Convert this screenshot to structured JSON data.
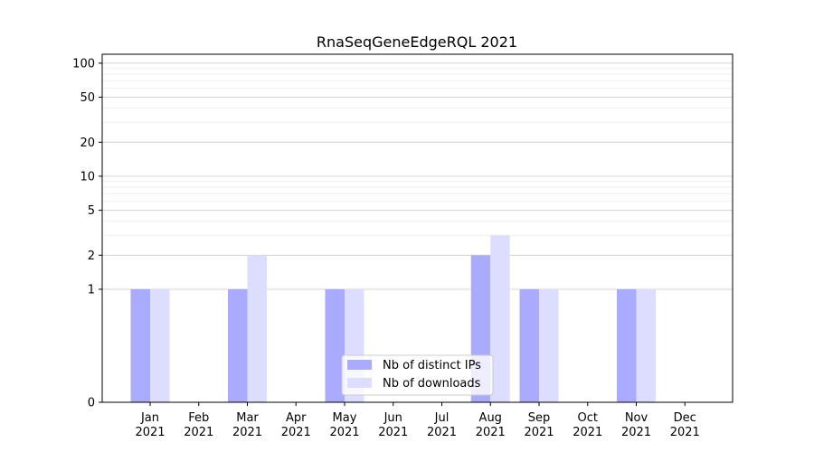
{
  "chart_data": {
    "type": "bar",
    "title": "RnaSeqGeneEdgeRQL 2021",
    "xlabel": "",
    "ylabel": "",
    "yscale": "symlog",
    "ylim": [
      0,
      120
    ],
    "y_ticks": [
      0,
      1,
      2,
      5,
      10,
      20,
      50,
      100
    ],
    "grid": true,
    "legend_position": "lower center",
    "categories": [
      [
        "Jan",
        "2021"
      ],
      [
        "Feb",
        "2021"
      ],
      [
        "Mar",
        "2021"
      ],
      [
        "Apr",
        "2021"
      ],
      [
        "May",
        "2021"
      ],
      [
        "Jun",
        "2021"
      ],
      [
        "Jul",
        "2021"
      ],
      [
        "Aug",
        "2021"
      ],
      [
        "Sep",
        "2021"
      ],
      [
        "Oct",
        "2021"
      ],
      [
        "Nov",
        "2021"
      ],
      [
        "Dec",
        "2021"
      ]
    ],
    "series": [
      {
        "name": "Nb of distinct IPs",
        "color": "#aaaaff",
        "values": [
          1,
          0,
          1,
          0,
          1,
          0,
          0,
          2,
          1,
          0,
          1,
          0
        ]
      },
      {
        "name": "Nb of downloads",
        "color": "#ddddff",
        "values": [
          1,
          0,
          2,
          0,
          1,
          0,
          0,
          3,
          1,
          0,
          1,
          0
        ]
      }
    ]
  }
}
